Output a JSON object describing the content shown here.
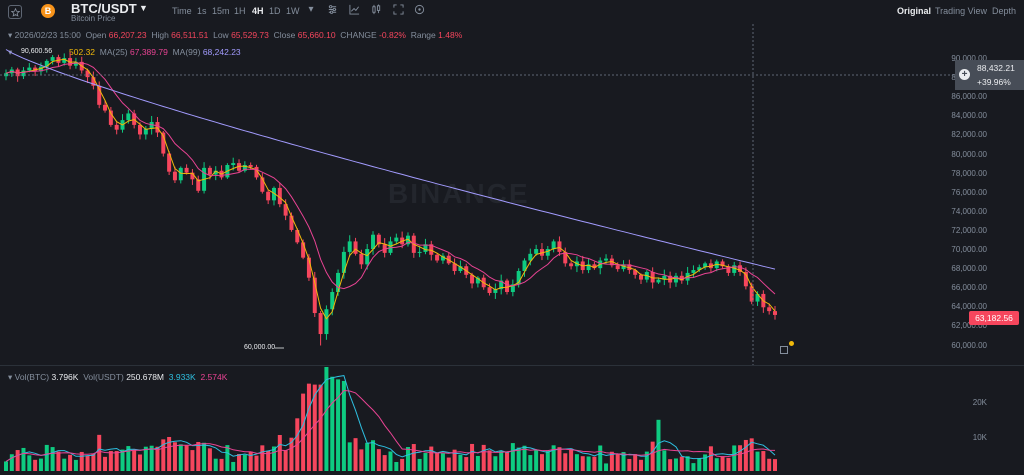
{
  "header": {
    "pair": "BTC/USDT",
    "subtitle": "Bitcoin Price",
    "coin_glyph": "B",
    "timeframes": [
      "Time",
      "1s",
      "15m",
      "1H",
      "4H",
      "1D",
      "1W"
    ],
    "active_timeframe": "4H",
    "views": [
      "Original",
      "Trading View",
      "Depth"
    ],
    "active_view": "Original"
  },
  "legend": {
    "date": "2026/02/23 15:00",
    "open_label": "Open",
    "open": "66,207.23",
    "high_label": "High",
    "high": "66,511.51",
    "low_label": "Low",
    "low": "65,529.73",
    "close_label": "Close",
    "close": "65,660.10",
    "change_label": "CHANGE",
    "change": "-0.82%",
    "range_label": "Range",
    "range": "1.48%"
  },
  "ma": {
    "ma7_value": "502.32",
    "ma25_label": "MA(25)",
    "ma25_value": "67,389.79",
    "ma99_label": "MA(99)",
    "ma99_value": "68,242.23"
  },
  "volume": {
    "label_btc": "Vol(BTC)",
    "btc": "3.796K",
    "label_usdt": "Vol(USDT)",
    "usdt": "250.678M",
    "v1": "3.933K",
    "v2": "2.574K",
    "axis": [
      "20K",
      "10K"
    ]
  },
  "price_axis": [
    "90,000.00",
    "88,000.00",
    "86,000.00",
    "84,000.00",
    "82,000.00",
    "80,000.00",
    "78,000.00",
    "76,000.00",
    "74,000.00",
    "72,000.00",
    "70,000.00",
    "68,000.00",
    "66,000.00",
    "64,000.00",
    "62,000.00",
    "60,000.00"
  ],
  "crosshair": {
    "price": "88,432.21",
    "pct": "+39.96%"
  },
  "last_price": "63,182.56",
  "annotations": {
    "low": "60,000.00",
    "high": "90,600.56"
  },
  "watermark": "BINANCE",
  "colors": {
    "up": "#0ecb81",
    "down": "#f6465d",
    "ma7": "#f0b90b",
    "ma25": "#e84393",
    "ma99": "#a29bfe",
    "bg": "#181a20"
  },
  "chart_data": {
    "type": "candlestick",
    "title": "",
    "ylim": [
      59000,
      91000
    ],
    "closes": [
      88500,
      88900,
      88200,
      88800,
      89100,
      88700,
      89200,
      89800,
      90200,
      89600,
      90100,
      89300,
      89700,
      88800,
      88100,
      87200,
      85200,
      84600,
      83100,
      82600,
      83600,
      84300,
      83100,
      82100,
      82700,
      83400,
      82300,
      80100,
      78200,
      77300,
      78600,
      78100,
      77400,
      76200,
      78600,
      77900,
      78300,
      77600,
      78900,
      79100,
      78300,
      78900,
      78700,
      77600,
      76100,
      75200,
      76500,
      74800,
      73600,
      72100,
      70800,
      69200,
      67100,
      63400,
      61200,
      63800,
      65600,
      67600,
      69800,
      70900,
      69600,
      68500,
      70100,
      71600,
      70600,
      69700,
      70900,
      71300,
      70600,
      71500,
      69700,
      69800,
      70600,
      69500,
      68900,
      69400,
      68600,
      67800,
      68300,
      67400,
      66500,
      67100,
      66100,
      65500,
      65900,
      66800,
      65600,
      66400,
      67800,
      68900,
      69600,
      70100,
      69400,
      70100,
      70900,
      69800,
      68600,
      68300,
      68800,
      67900,
      68500,
      68100,
      68900,
      69100,
      68400,
      68000,
      68500,
      67900,
      67400,
      66900,
      67700,
      66600,
      66900,
      67300,
      66600,
      67300,
      66800,
      67600,
      67900,
      68200,
      68600,
      68100,
      68800,
      68300,
      67600,
      68400,
      67700,
      66200,
      64600,
      65400,
      64000,
      63600,
      63200
    ],
    "series": [
      {
        "name": "MA(25)",
        "last": 67389.79
      },
      {
        "name": "MA(99)",
        "last": 68242.23
      }
    ],
    "volume_axis": [
      "20K",
      "10K"
    ]
  }
}
